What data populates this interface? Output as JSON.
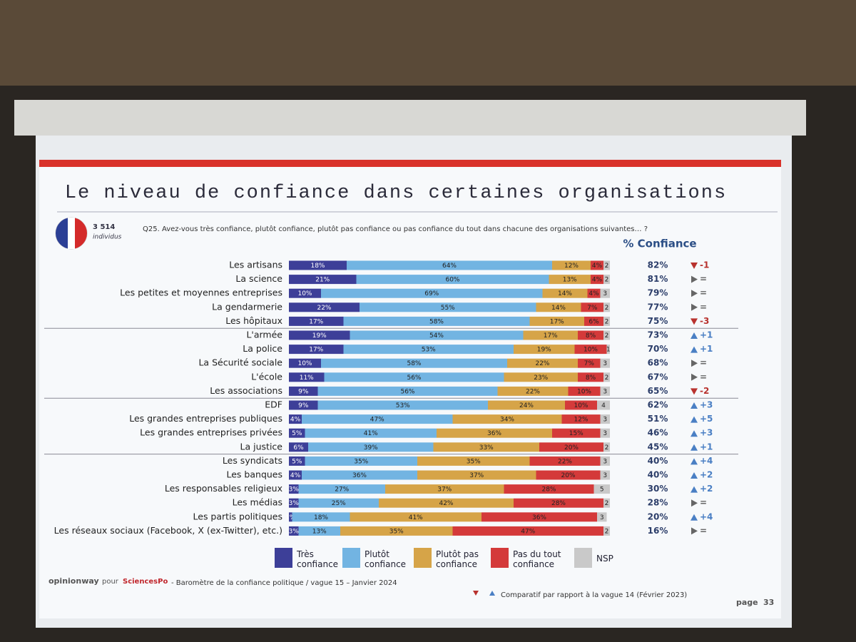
{
  "header": {
    "title": "Le niveau de confiance dans certaines organisations",
    "sample": "3 514",
    "sample_unit": "individus",
    "question": "Q25. Avez-vous très confiance, plutôt confiance, plutôt pas confiance ou pas confiance du tout dans chacune des organisations suivantes… ?"
  },
  "chart_data": {
    "type": "bar",
    "orientation": "horizontal",
    "stacked": true,
    "categories": [
      "Les artisans",
      "La science",
      "Les petites et moyennes entreprises",
      "La gendarmerie",
      "Les hôpitaux",
      "L'armée",
      "La police",
      "La Sécurité sociale",
      "L'école",
      "Les associations",
      "EDF",
      "Les grandes entreprises publiques",
      "Les grandes entreprises privées",
      "La justice",
      "Les syndicats",
      "Les banques",
      "Les responsables religieux",
      "Les médias",
      "Les partis politiques",
      "Les réseaux sociaux (Facebook, X (ex-Twitter), etc.)"
    ],
    "series": [
      {
        "name": "Très confiance",
        "color": "#3d3f98",
        "values": [
          18,
          21,
          10,
          22,
          17,
          19,
          17,
          10,
          11,
          9,
          9,
          4,
          5,
          6,
          5,
          4,
          3,
          3,
          1,
          3
        ],
        "value_labels": [
          "18%",
          "21%",
          "10%",
          "22%",
          "17%",
          "19%",
          "17%",
          "10%",
          "11%",
          "9%",
          "9%",
          "4%",
          "5%",
          "6%",
          "5%",
          "4%",
          "3%",
          "3%",
          "1%",
          "3%"
        ]
      },
      {
        "name": "Plutôt confiance",
        "color": "#72b4e2",
        "values": [
          64,
          60,
          69,
          55,
          58,
          54,
          53,
          58,
          56,
          56,
          53,
          47,
          41,
          39,
          35,
          36,
          27,
          25,
          18,
          13
        ],
        "value_labels": [
          "64%",
          "60%",
          "69%",
          "55%",
          "58%",
          "54%",
          "53%",
          "58%",
          "56%",
          "56%",
          "53%",
          "47%",
          "41%",
          "39%",
          "35%",
          "36%",
          "27%",
          "25%",
          "18%",
          "13%"
        ]
      },
      {
        "name": "Plutôt pas confiance",
        "color": "#d6a448",
        "values": [
          12,
          13,
          14,
          14,
          17,
          17,
          19,
          22,
          23,
          22,
          24,
          34,
          36,
          33,
          35,
          37,
          37,
          42,
          41,
          35
        ],
        "value_labels": [
          "12%",
          "13%",
          "14%",
          "14%",
          "17%",
          "17%",
          "19%",
          "22%",
          "23%",
          "22%",
          "24%",
          "34%",
          "36%",
          "33%",
          "35%",
          "37%",
          "37%",
          "42%",
          "41%",
          "35%"
        ]
      },
      {
        "name": "Pas du tout confiance",
        "color": "#d43a3a",
        "values": [
          4,
          4,
          4,
          7,
          6,
          8,
          10,
          7,
          8,
          10,
          10,
          12,
          15,
          20,
          22,
          20,
          28,
          28,
          36,
          47
        ],
        "value_labels": [
          "4%",
          "4%",
          "4%",
          "7%",
          "6%",
          "8%",
          "10%",
          "7%",
          "8%",
          "10%",
          "10%",
          "12%",
          "15%",
          "20%",
          "22%",
          "20%",
          "28%",
          "28%",
          "36%",
          "47%"
        ]
      },
      {
        "name": "NSP",
        "color": "#c9c9c9",
        "values": [
          2,
          2,
          3,
          2,
          2,
          2,
          1,
          3,
          2,
          3,
          4,
          3,
          3,
          2,
          3,
          3,
          5,
          2,
          3,
          2
        ]
      }
    ],
    "confidence": {
      "title": "% Confiance",
      "values": [
        82,
        81,
        79,
        77,
        75,
        73,
        70,
        68,
        67,
        65,
        62,
        51,
        46,
        45,
        40,
        40,
        30,
        28,
        20,
        16
      ],
      "value_labels": [
        "82%",
        "81%",
        "79%",
        "77%",
        "75%",
        "73%",
        "70%",
        "68%",
        "67%",
        "65%",
        "62%",
        "51%",
        "46%",
        "45%",
        "40%",
        "40%",
        "30%",
        "28%",
        "20%",
        "16%"
      ]
    },
    "change": {
      "values": [
        -1,
        0,
        0,
        0,
        -3,
        1,
        1,
        0,
        0,
        -2,
        3,
        5,
        3,
        1,
        4,
        2,
        2,
        0,
        4,
        0
      ],
      "value_labels": [
        "-1",
        "=",
        "=",
        "=",
        "-3",
        "+1",
        "+1",
        "=",
        "=",
        "-2",
        "+3",
        "+5",
        "+3",
        "+1",
        "+4",
        "+2",
        "+2",
        "=",
        "+4",
        "="
      ],
      "up_color": "#4a7fc4",
      "down_color": "#b8322e",
      "flat_color": "#666666"
    }
  },
  "footer": {
    "brand": "opinionway",
    "for": "pour",
    "partner": "SciencesPo",
    "source": "- Baromètre de la confiance politique / vague 15 – Janvier 2024",
    "comparison": "Comparatif par rapport à la vague 14 (Février 2023)",
    "page": "page",
    "page_number": "33"
  }
}
